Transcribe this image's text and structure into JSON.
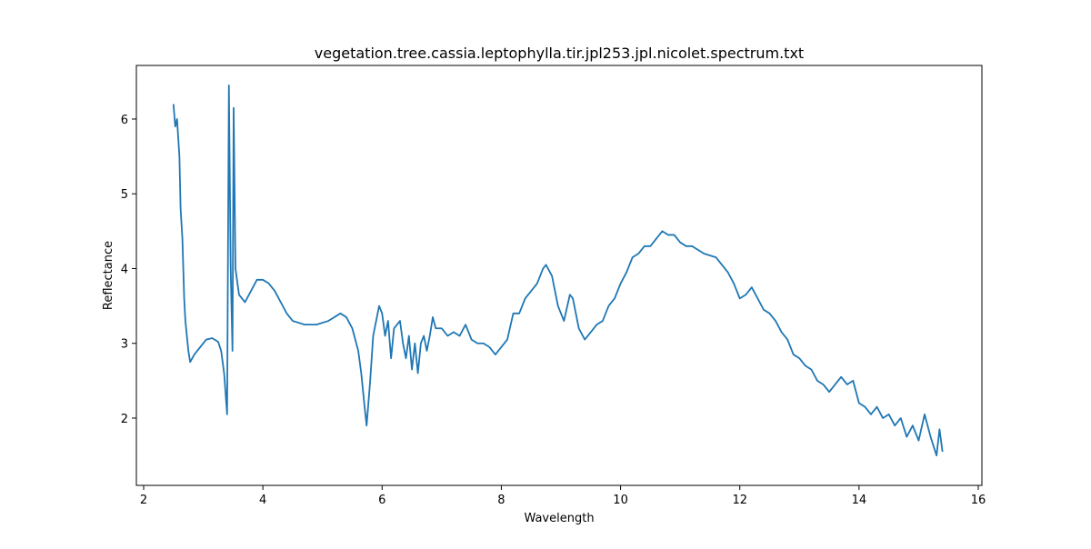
{
  "chart_data": {
    "type": "line",
    "title": "vegetation.tree.cassia.leptophylla.tir.jpl253.jpl.nicolet.spectrum.txt",
    "xlabel": "Wavelength",
    "ylabel": "Reflectance",
    "x": [
      2.5,
      2.53,
      2.56,
      2.6,
      2.62,
      2.65,
      2.68,
      2.7,
      2.75,
      2.78,
      2.85,
      2.95,
      3.05,
      3.15,
      3.25,
      3.3,
      3.35,
      3.4,
      3.43,
      3.46,
      3.49,
      3.51,
      3.54,
      3.6,
      3.7,
      3.8,
      3.9,
      4.0,
      4.1,
      4.2,
      4.3,
      4.4,
      4.5,
      4.7,
      4.9,
      5.1,
      5.3,
      5.4,
      5.5,
      5.6,
      5.65,
      5.7,
      5.74,
      5.8,
      5.85,
      5.9,
      5.95,
      6.0,
      6.05,
      6.1,
      6.15,
      6.2,
      6.3,
      6.35,
      6.4,
      6.45,
      6.5,
      6.55,
      6.6,
      6.65,
      6.7,
      6.75,
      6.8,
      6.85,
      6.9,
      7.0,
      7.1,
      7.2,
      7.3,
      7.4,
      7.5,
      7.6,
      7.7,
      7.8,
      7.9,
      8.0,
      8.1,
      8.2,
      8.3,
      8.4,
      8.5,
      8.6,
      8.7,
      8.75,
      8.85,
      8.95,
      9.05,
      9.15,
      9.2,
      9.3,
      9.4,
      9.5,
      9.6,
      9.7,
      9.8,
      9.9,
      10.0,
      10.1,
      10.2,
      10.3,
      10.4,
      10.5,
      10.6,
      10.7,
      10.8,
      10.9,
      11.0,
      11.1,
      11.2,
      11.4,
      11.6,
      11.7,
      11.8,
      11.9,
      12.0,
      12.1,
      12.2,
      12.3,
      12.4,
      12.5,
      12.6,
      12.7,
      12.8,
      12.9,
      13.0,
      13.1,
      13.2,
      13.3,
      13.4,
      13.5,
      13.6,
      13.7,
      13.8,
      13.9,
      14.0,
      14.1,
      14.2,
      14.3,
      14.4,
      14.5,
      14.6,
      14.7,
      14.8,
      14.9,
      15.0,
      15.1,
      15.2,
      15.3,
      15.35,
      15.4
    ],
    "series": [
      {
        "name": "Reflectance",
        "color": "#1f77b4",
        "values": [
          6.2,
          5.9,
          6.0,
          5.5,
          4.8,
          4.4,
          3.6,
          3.3,
          2.9,
          2.75,
          2.85,
          2.95,
          3.05,
          3.07,
          3.02,
          2.9,
          2.6,
          2.05,
          6.45,
          4.0,
          2.9,
          6.15,
          4.0,
          3.65,
          3.55,
          3.7,
          3.85,
          3.85,
          3.8,
          3.7,
          3.55,
          3.4,
          3.3,
          3.25,
          3.25,
          3.3,
          3.4,
          3.35,
          3.2,
          2.9,
          2.6,
          2.2,
          1.9,
          2.5,
          3.1,
          3.3,
          3.5,
          3.4,
          3.1,
          3.3,
          2.8,
          3.2,
          3.3,
          3.0,
          2.8,
          3.1,
          2.65,
          3.0,
          2.6,
          3.0,
          3.1,
          2.9,
          3.1,
          3.35,
          3.2,
          3.2,
          3.1,
          3.15,
          3.1,
          3.25,
          3.05,
          3.0,
          3.0,
          2.95,
          2.85,
          2.95,
          3.05,
          3.4,
          3.4,
          3.6,
          3.7,
          3.8,
          4.0,
          4.05,
          3.9,
          3.5,
          3.3,
          3.65,
          3.6,
          3.2,
          3.05,
          3.15,
          3.25,
          3.3,
          3.5,
          3.6,
          3.8,
          3.95,
          4.15,
          4.2,
          4.3,
          4.3,
          4.4,
          4.5,
          4.45,
          4.45,
          4.35,
          4.3,
          4.3,
          4.2,
          4.15,
          4.05,
          3.95,
          3.8,
          3.6,
          3.65,
          3.75,
          3.6,
          3.45,
          3.4,
          3.3,
          3.15,
          3.05,
          2.85,
          2.8,
          2.7,
          2.65,
          2.5,
          2.45,
          2.35,
          2.45,
          2.55,
          2.45,
          2.5,
          2.2,
          2.15,
          2.05,
          2.15,
          2.0,
          2.05,
          1.9,
          2.0,
          1.75,
          1.9,
          1.7,
          2.05,
          1.75,
          1.5,
          1.85,
          1.55
        ]
      }
    ],
    "xlim": [
      1.878,
      16.061
    ],
    "ylim": [
      1.1,
      6.717
    ],
    "xticks": [
      2,
      4,
      6,
      8,
      10,
      12,
      14,
      16
    ],
    "yticks": [
      2,
      3,
      4,
      5,
      6
    ]
  }
}
